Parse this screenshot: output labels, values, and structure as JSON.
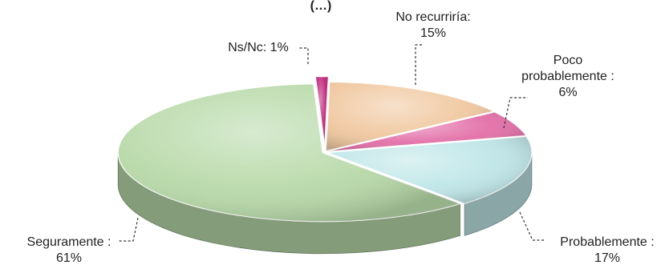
{
  "chart_data": {
    "type": "pie",
    "title_fragment": "(…)",
    "slices": [
      {
        "key": "no-recurriria",
        "lines": [
          "No recurriría:",
          "15%"
        ],
        "value": 15,
        "color": "#f0c8a0"
      },
      {
        "key": "poco-probablemente",
        "lines": [
          "Poco",
          "probablemente :",
          "6%"
        ],
        "value": 6,
        "color": "#e36fa8"
      },
      {
        "key": "probablemente",
        "lines": [
          "Probablemente :",
          "17%"
        ],
        "value": 17,
        "color": "#bfe6e8"
      },
      {
        "key": "seguramente",
        "lines": [
          "Seguramente :",
          "61%"
        ],
        "value": 61,
        "color": "#b7d9a8"
      },
      {
        "key": "ns-nc",
        "lines": [
          "Ns/Nc: 1%"
        ],
        "value": 1,
        "color": "#c0247a"
      }
    ],
    "legend": "none"
  }
}
